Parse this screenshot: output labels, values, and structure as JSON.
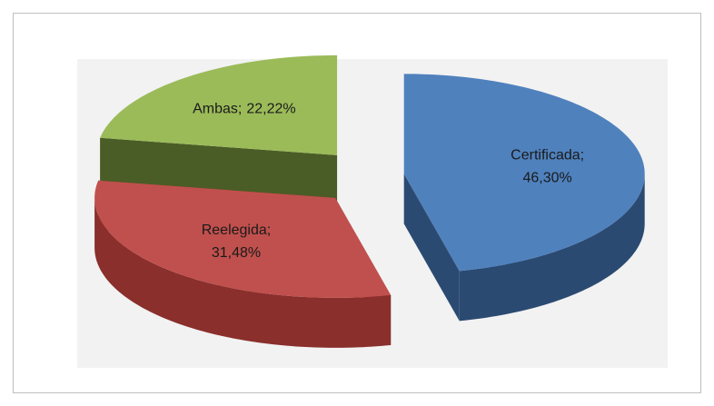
{
  "chart_data": {
    "type": "pie",
    "categories": [
      "Certificada;",
      "Reelegida;",
      "Ambas;"
    ],
    "values": [
      46.3,
      31.48,
      22.22
    ],
    "value_labels": [
      "46,30%",
      "31,48%",
      "22,22%"
    ],
    "colors": [
      "#4f81bd",
      "#c0504d",
      "#9bbb59"
    ],
    "side_colors": [
      "#2b4a72",
      "#8a2f2c",
      "#4a5d26"
    ],
    "exploded": true,
    "three_d": true
  }
}
